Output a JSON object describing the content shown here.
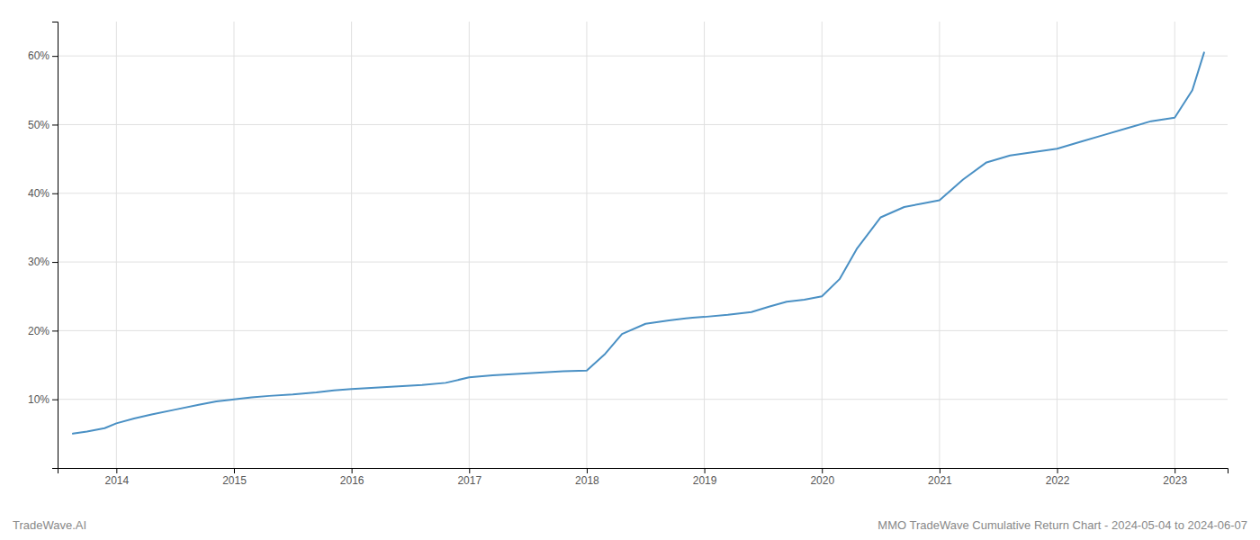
{
  "chart_data": {
    "type": "line",
    "title": "MMO TradeWave Cumulative Return Chart - 2024-05-04 to 2024-06-07",
    "annotations": [
      "TradeWave.AI"
    ],
    "color": "#4a90c4",
    "grid": true,
    "x": [
      2013.63,
      2013.75,
      2013.9,
      2014.0,
      2014.15,
      2014.3,
      2014.5,
      2014.7,
      2014.85,
      2015.0,
      2015.15,
      2015.3,
      2015.5,
      2015.7,
      2015.85,
      2016.0,
      2016.2,
      2016.4,
      2016.6,
      2016.8,
      2017.0,
      2017.2,
      2017.5,
      2017.8,
      2018.0,
      2018.15,
      2018.3,
      2018.5,
      2018.7,
      2018.9,
      2019.0,
      2019.2,
      2019.4,
      2019.55,
      2019.7,
      2019.85,
      2020.0,
      2020.15,
      2020.3,
      2020.5,
      2020.7,
      2020.85,
      2021.0,
      2021.2,
      2021.4,
      2021.6,
      2021.8,
      2022.0,
      2022.2,
      2022.4,
      2022.6,
      2022.8,
      2023.0,
      2023.15,
      2023.25
    ],
    "values": [
      5.0,
      5.3,
      5.8,
      6.5,
      7.2,
      7.8,
      8.5,
      9.2,
      9.7,
      10.0,
      10.3,
      10.5,
      10.7,
      11.0,
      11.3,
      11.5,
      11.7,
      11.9,
      12.1,
      12.4,
      13.2,
      13.5,
      13.8,
      14.1,
      14.2,
      16.5,
      19.5,
      21.0,
      21.5,
      21.9,
      22.0,
      22.3,
      22.7,
      23.5,
      24.2,
      24.5,
      25.0,
      27.5,
      32.0,
      36.5,
      38.0,
      38.5,
      39.0,
      42.0,
      44.5,
      45.5,
      46.0,
      46.5,
      47.5,
      48.5,
      49.5,
      50.5,
      51.0,
      55.0,
      60.5
    ],
    "xlim": [
      2013.5,
      2023.45
    ],
    "ylim": [
      0,
      65
    ],
    "xticks": [
      2014,
      2015,
      2016,
      2017,
      2018,
      2019,
      2020,
      2021,
      2022,
      2023
    ],
    "yticks": [
      {
        "value": 10,
        "label": "10%"
      },
      {
        "value": 20,
        "label": "20%"
      },
      {
        "value": 30,
        "label": "30%"
      },
      {
        "value": 40,
        "label": "40%"
      },
      {
        "value": 50,
        "label": "50%"
      },
      {
        "value": 60,
        "label": "60%"
      }
    ]
  }
}
